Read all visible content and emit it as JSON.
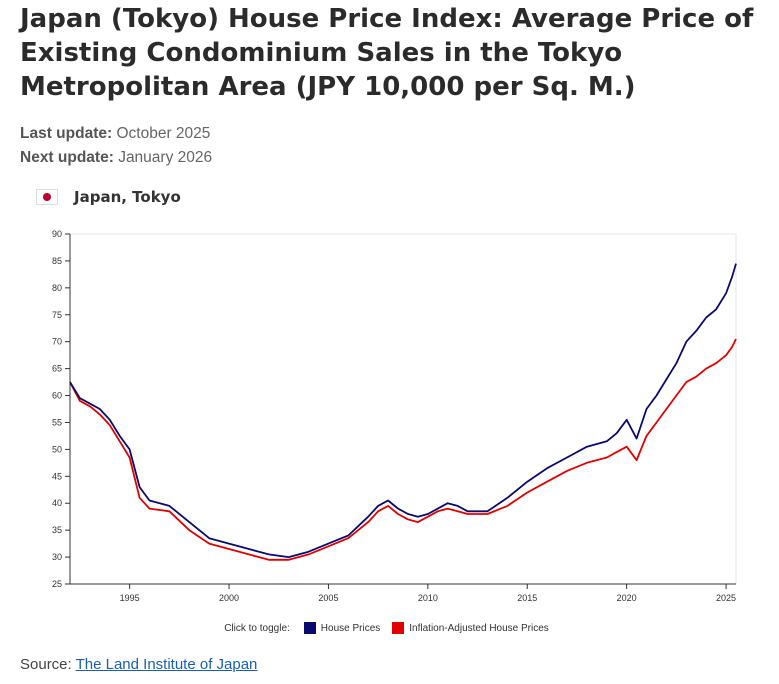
{
  "title": "Japan (Tokyo) House Price Index: Average Price of Existing Condominium Sales in the Tokyo Metropolitan Area (JPY 10,000 per Sq. M.)",
  "meta": {
    "last_update_label": "Last update:",
    "last_update_value": "October 2025",
    "next_update_label": "Next update:",
    "next_update_value": "January 2026"
  },
  "series_tag": {
    "icon": "japan-flag-icon",
    "label": "Japan, Tokyo"
  },
  "legend": {
    "hint": "Click to toggle:",
    "items": [
      {
        "label": "House Prices",
        "color": "#0a0a6e"
      },
      {
        "label": "Inflation-Adjusted House Prices",
        "color": "#e00000"
      }
    ]
  },
  "source": {
    "label": "Source:",
    "link_text": "The Land Institute of Japan"
  },
  "chart_data": {
    "type": "line",
    "x_ticks": [
      1995,
      2000,
      2005,
      2010,
      2015,
      2020,
      2025
    ],
    "y_ticks": [
      25,
      30,
      35,
      40,
      45,
      50,
      55,
      60,
      65,
      70,
      75,
      80,
      85,
      90
    ],
    "xlim": [
      1992.0,
      2025.5
    ],
    "ylim": [
      25,
      90
    ],
    "grid": false,
    "legend_position": "bottom",
    "series": [
      {
        "name": "House Prices",
        "color": "#0a0a6e",
        "x": [
          1992.0,
          1992.5,
          1993.0,
          1993.5,
          1994.0,
          1994.5,
          1995.0,
          1995.5,
          1996.0,
          1997.0,
          1998.0,
          1999.0,
          2000.0,
          2001.0,
          2002.0,
          2003.0,
          2004.0,
          2005.0,
          2006.0,
          2007.0,
          2007.5,
          2008.0,
          2008.5,
          2009.0,
          2009.5,
          2010.0,
          2010.5,
          2011.0,
          2011.5,
          2012.0,
          2013.0,
          2014.0,
          2015.0,
          2016.0,
          2017.0,
          2018.0,
          2019.0,
          2019.5,
          2020.0,
          2020.5,
          2021.0,
          2021.5,
          2022.0,
          2022.5,
          2023.0,
          2023.5,
          2024.0,
          2024.5,
          2025.0,
          2025.3,
          2025.5
        ],
        "y": [
          62.5,
          59.5,
          58.5,
          57.5,
          55.5,
          52.5,
          50.0,
          43.0,
          40.5,
          39.5,
          36.5,
          33.5,
          32.5,
          31.5,
          30.5,
          30.0,
          31.0,
          32.5,
          34.0,
          37.5,
          39.5,
          40.5,
          39.0,
          38.0,
          37.5,
          38.0,
          39.0,
          40.0,
          39.5,
          38.5,
          38.5,
          41.0,
          44.0,
          46.5,
          48.5,
          50.5,
          51.5,
          53.0,
          55.5,
          52.0,
          57.5,
          60.0,
          63.0,
          66.0,
          70.0,
          72.0,
          74.5,
          76.0,
          79.0,
          82.0,
          84.5
        ]
      },
      {
        "name": "Inflation-Adjusted House Prices",
        "color": "#e00000",
        "x": [
          1992.0,
          1992.5,
          1993.0,
          1993.5,
          1994.0,
          1994.5,
          1995.0,
          1995.5,
          1996.0,
          1997.0,
          1998.0,
          1999.0,
          2000.0,
          2001.0,
          2002.0,
          2003.0,
          2004.0,
          2005.0,
          2006.0,
          2007.0,
          2007.5,
          2008.0,
          2008.5,
          2009.0,
          2009.5,
          2010.0,
          2010.5,
          2011.0,
          2011.5,
          2012.0,
          2013.0,
          2014.0,
          2015.0,
          2016.0,
          2017.0,
          2018.0,
          2019.0,
          2019.5,
          2020.0,
          2020.5,
          2021.0,
          2021.5,
          2022.0,
          2022.5,
          2023.0,
          2023.5,
          2024.0,
          2024.5,
          2025.0,
          2025.3,
          2025.5
        ],
        "y": [
          62.5,
          59.0,
          58.0,
          56.5,
          54.5,
          51.5,
          48.5,
          41.0,
          39.0,
          38.5,
          35.0,
          32.5,
          31.5,
          30.5,
          29.5,
          29.5,
          30.5,
          32.0,
          33.5,
          36.5,
          38.5,
          39.5,
          38.0,
          37.0,
          36.5,
          37.5,
          38.5,
          39.0,
          38.5,
          38.0,
          38.0,
          39.5,
          42.0,
          44.0,
          46.0,
          47.5,
          48.5,
          49.5,
          50.5,
          48.0,
          52.5,
          55.0,
          57.5,
          60.0,
          62.5,
          63.5,
          65.0,
          66.0,
          67.5,
          69.0,
          70.5
        ]
      }
    ]
  }
}
